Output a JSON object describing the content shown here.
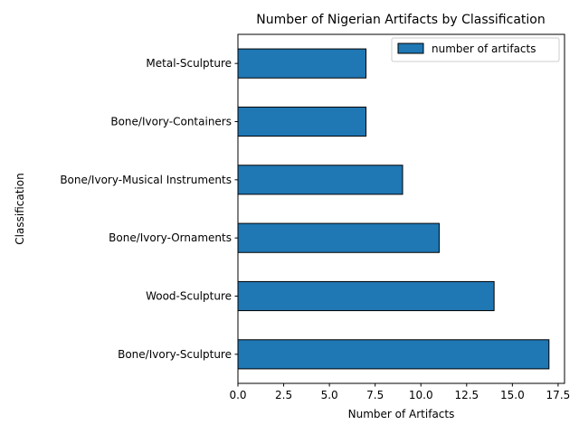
{
  "chart_data": {
    "type": "bar",
    "orientation": "horizontal",
    "title": "Number of Nigerian Artifacts by Classification",
    "xlabel": "Number of Artifacts",
    "ylabel": "Classification",
    "xlim": [
      0,
      17.85
    ],
    "xticks": [
      0.0,
      2.5,
      5.0,
      7.5,
      10.0,
      12.5,
      15.0,
      17.5
    ],
    "xtick_labels": [
      "0.0",
      "2.5",
      "5.0",
      "7.5",
      "10.0",
      "12.5",
      "15.0",
      "17.5"
    ],
    "categories": [
      "Bone/Ivory-Sculpture",
      "Wood-Sculpture",
      "Bone/Ivory-Ornaments",
      "Bone/Ivory-Musical Instruments",
      "Bone/Ivory-Containers",
      "Metal-Sculpture"
    ],
    "series": [
      {
        "name": "number of artifacts",
        "values": [
          17,
          14,
          11,
          9,
          7,
          7
        ],
        "color": "#1f77b4",
        "edgecolor": "#000000"
      }
    ],
    "grid": false,
    "legend_position": "top-right"
  }
}
